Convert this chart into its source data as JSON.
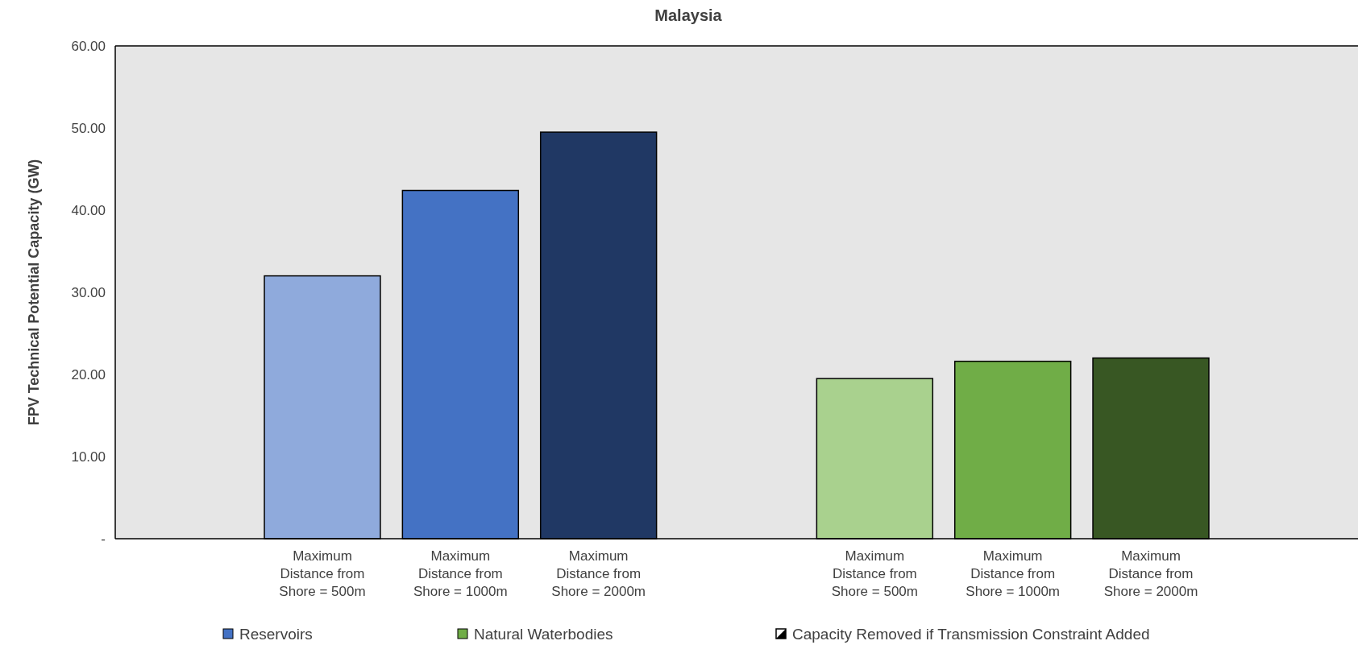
{
  "chart_data": {
    "type": "bar",
    "title": "Malaysia",
    "ylabel": "FPV Technical Potential Capacity (GW)",
    "categories": [
      null,
      "Maximum Distance from Shore = 500m",
      "Maximum Distance from Shore = 1000m",
      "Maximum Distance from Shore = 2000m",
      null,
      "Maximum Distance from Shore = 500m",
      "Maximum Distance from Shore = 1000m",
      "Maximum Distance from Shore = 2000m",
      null
    ],
    "series": [
      {
        "name": "Reservoirs",
        "color": "#4472c4",
        "colors": [
          null,
          "#8faadc",
          "#4472c4",
          "#203864",
          null,
          null,
          null,
          null,
          null
        ],
        "values": [
          null,
          32.0,
          42.4,
          49.5,
          null,
          null,
          null,
          null,
          null
        ]
      },
      {
        "name": "Natural Waterbodies",
        "color": "#70ad47",
        "colors": [
          null,
          null,
          null,
          null,
          null,
          "#a9d18e",
          "#70ad47",
          "#385723",
          null
        ],
        "values": [
          null,
          null,
          null,
          null,
          null,
          19.5,
          21.6,
          22.0,
          null
        ]
      },
      {
        "name": "Capacity Removed if Transmission Constraint Added",
        "color": "#000000",
        "values": [
          null,
          null,
          null,
          null,
          null,
          null,
          null,
          null,
          null
        ]
      }
    ],
    "ylim": [
      0,
      60
    ],
    "yticks": [
      {
        "value": 0,
        "label": "-"
      },
      {
        "value": 10,
        "label": "10.00"
      },
      {
        "value": 20,
        "label": "20.00"
      },
      {
        "value": 30,
        "label": "30.00"
      },
      {
        "value": 40,
        "label": "40.00"
      },
      {
        "value": 50,
        "label": "50.00"
      },
      {
        "value": 60,
        "label": "60.00"
      }
    ],
    "legend": "bottom"
  }
}
